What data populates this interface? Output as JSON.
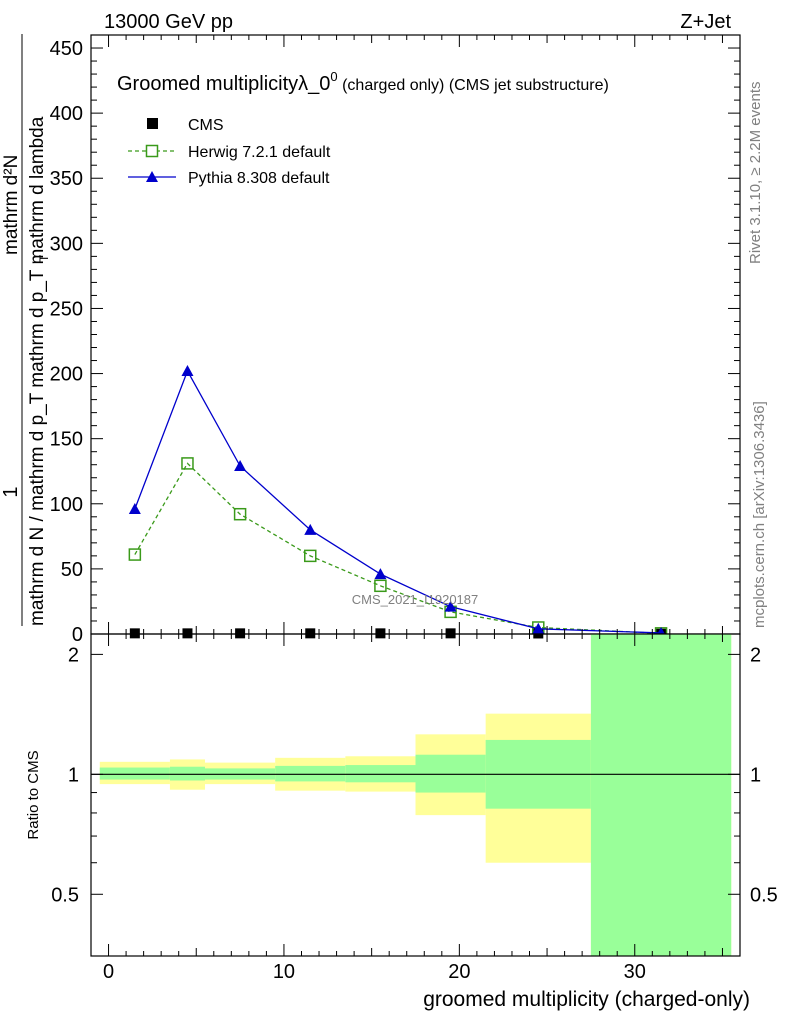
{
  "header": {
    "left_label": "13000 GeV pp",
    "right_label": "Z+Jet"
  },
  "side_labels": {
    "rivet": "Rivet 3.1.10, ≥ 2.2M events",
    "mcplots": "mcplots.cern.ch [arXiv:1306.3436]"
  },
  "chart_data": [
    {
      "type": "line",
      "panel": "main",
      "title_main": "Groomed multiplicityλ_0",
      "title_sup": "0",
      "title_suffix1": " (charged only)",
      "title_suffix2": " (CMS jet substructure)",
      "ylabel_num": "1",
      "ylabel_den": "mathrm d N / mathrm d p_T mathrm d p_T mathrm d lambda",
      "ylabel_den_sub": "T",
      "ylabel_right": "mathrm d²N",
      "watermark": "CMS_2021_I1920187",
      "ylim": [
        0,
        460
      ],
      "yticks": [
        "0",
        "50",
        "100",
        "150",
        "200",
        "250",
        "300",
        "350",
        "400",
        "450"
      ],
      "legend_position": "top-left",
      "series": [
        {
          "name": "CMS",
          "marker": "filled-square",
          "color": "#000000",
          "x": [
            1.5,
            4.5,
            7.5,
            11.5,
            15.5,
            19.5,
            24.5,
            31.5
          ],
          "y": [
            0.5,
            0.5,
            0.5,
            0.5,
            0.5,
            0.5,
            0.4,
            0.2
          ]
        },
        {
          "name": "Herwig 7.2.1 default",
          "marker": "open-square",
          "line": "dashed",
          "color": "#3a9a1a",
          "x": [
            1.5,
            4.5,
            7.5,
            11.5,
            15.5,
            19.5,
            24.5,
            31.5
          ],
          "y": [
            61,
            131,
            92,
            60,
            37,
            17,
            5,
            0.5
          ]
        },
        {
          "name": "Pythia 8.308 default",
          "marker": "filled-triangle",
          "line": "solid",
          "color": "#0000cc",
          "x": [
            1.5,
            4.5,
            7.5,
            11.5,
            15.5,
            19.5,
            24.5,
            31.5
          ],
          "y": [
            96,
            202,
            129,
            80,
            46,
            21,
            4,
            0.8
          ]
        }
      ]
    },
    {
      "type": "area",
      "panel": "ratio",
      "ylabel": "Ratio to CMS",
      "xlabel": "groomed multiplicity (charged-only)",
      "xlim": [
        -1,
        36
      ],
      "ylim": [
        0.35,
        2.25
      ],
      "xticks": [
        "0",
        "10",
        "20",
        "30"
      ],
      "yticks": [
        "0.5",
        "1",
        "2"
      ],
      "reference_line": 1,
      "bands": [
        {
          "x0": -0.5,
          "x1": 3.5,
          "stat_lo": 0.97,
          "stat_hi": 1.04,
          "tot_lo": 0.945,
          "tot_hi": 1.075
        },
        {
          "x0": 3.5,
          "x1": 5.5,
          "stat_lo": 0.965,
          "stat_hi": 1.045,
          "tot_lo": 0.915,
          "tot_hi": 1.09
        },
        {
          "x0": 5.5,
          "x1": 9.5,
          "stat_lo": 0.97,
          "stat_hi": 1.035,
          "tot_lo": 0.945,
          "tot_hi": 1.07
        },
        {
          "x0": 9.5,
          "x1": 13.5,
          "stat_lo": 0.96,
          "stat_hi": 1.05,
          "tot_lo": 0.91,
          "tot_hi": 1.1
        },
        {
          "x0": 13.5,
          "x1": 17.5,
          "stat_lo": 0.955,
          "stat_hi": 1.055,
          "tot_lo": 0.905,
          "tot_hi": 1.11
        },
        {
          "x0": 17.5,
          "x1": 21.5,
          "stat_lo": 0.9,
          "stat_hi": 1.12,
          "tot_lo": 0.79,
          "tot_hi": 1.26
        },
        {
          "x0": 21.5,
          "x1": 27.5,
          "stat_lo": 0.82,
          "stat_hi": 1.22,
          "tot_lo": 0.6,
          "tot_hi": 1.42
        },
        {
          "x0": 27.5,
          "x1": 35.5,
          "stat_lo": 0.35,
          "stat_hi": 2.25,
          "tot_lo": 0.35,
          "tot_hi": 2.25
        }
      ],
      "colors": {
        "stat_band": "#99ff99",
        "total_band": "#ffff99"
      }
    }
  ]
}
